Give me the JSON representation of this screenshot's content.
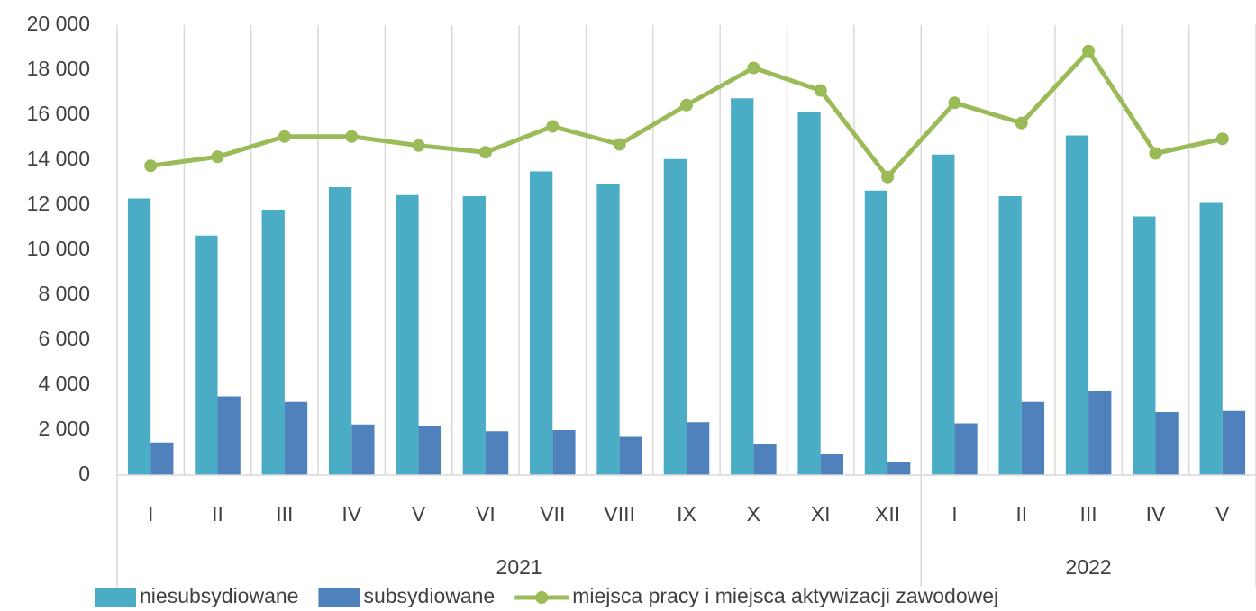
{
  "chart_data": {
    "type": "bar_line",
    "groups": [
      {
        "label": "2021",
        "categories": [
          "I",
          "II",
          "III",
          "IV",
          "V",
          "VI",
          "VII",
          "VIII",
          "IX",
          "X",
          "XI",
          "XII"
        ]
      },
      {
        "label": "2022",
        "categories": [
          "I",
          "II",
          "III",
          "IV",
          "V"
        ]
      }
    ],
    "series": [
      {
        "name": "niesubsydiowane",
        "type": "bar",
        "color": "#4bacc6",
        "values": [
          12300,
          10650,
          11800,
          12800,
          12450,
          12400,
          13500,
          12950,
          14050,
          16750,
          16150,
          12650,
          14250,
          12400,
          15100,
          11500,
          12100
        ]
      },
      {
        "name": "subsydiowane",
        "type": "bar",
        "color": "#4f81bd",
        "values": [
          1450,
          3500,
          3250,
          2250,
          2200,
          1950,
          2000,
          1700,
          2350,
          1400,
          950,
          600,
          2300,
          3250,
          3750,
          2800,
          2850
        ]
      },
      {
        "name": "miejsca pracy i miejsca aktywizacji zawodowej",
        "type": "line",
        "color": "#9bbb59",
        "values": [
          13750,
          14150,
          15050,
          15050,
          14650,
          14350,
          15500,
          14700,
          16450,
          18100,
          17100,
          13250,
          16550,
          15650,
          18850,
          14300,
          14950
        ]
      }
    ],
    "ylim": [
      0,
      20000
    ],
    "yticks": [
      0,
      {
        "value": 2000,
        "label": "2 000"
      },
      {
        "value": 4000,
        "label": "4 000"
      },
      {
        "value": 6000,
        "label": "6 000"
      },
      {
        "value": 8000,
        "label": "8 000"
      },
      {
        "value": 10000,
        "label": "10 000"
      },
      {
        "value": 12000,
        "label": "12 000"
      },
      {
        "value": 14000,
        "label": "14 000"
      },
      {
        "value": 16000,
        "label": "16 000"
      },
      {
        "value": 18000,
        "label": "18 000"
      },
      {
        "value": 20000,
        "label": "20 000"
      }
    ],
    "legend": "bottom"
  }
}
